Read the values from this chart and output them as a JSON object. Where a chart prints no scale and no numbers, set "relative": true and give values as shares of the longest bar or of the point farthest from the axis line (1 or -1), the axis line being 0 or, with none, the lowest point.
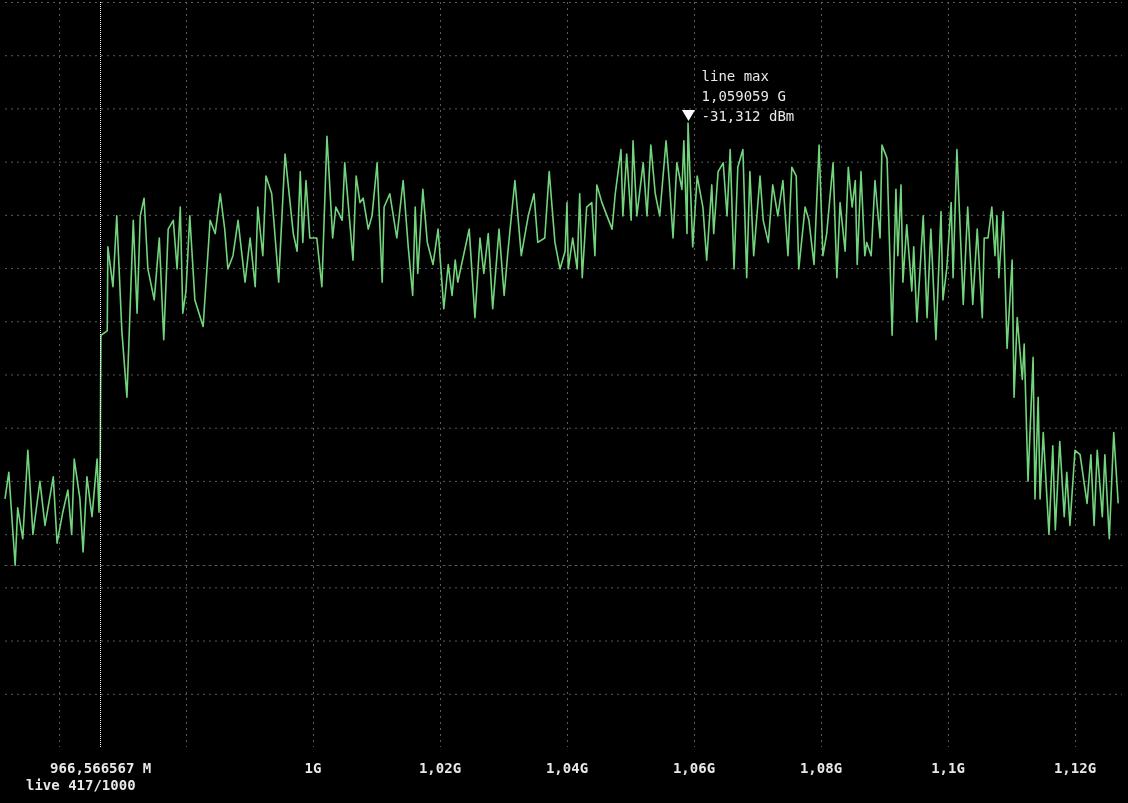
{
  "chart_data": {
    "type": "line",
    "relative": true,
    "grid": true,
    "marker": "none",
    "xlim": [
      0.9515,
      1.1274
    ],
    "xticks": [
      {
        "value": 0.96,
        "label": null
      },
      {
        "value": 0.98,
        "label": null
      },
      {
        "value": 1,
        "label": "1G"
      },
      {
        "value": 1.02,
        "label": "1,02G"
      },
      {
        "value": 1.04,
        "label": "1,04G"
      },
      {
        "value": 1.06,
        "label": "1,06G"
      },
      {
        "value": 1.08,
        "label": "1,08G"
      },
      {
        "value": 1.1,
        "label": "1,1G"
      },
      {
        "value": 1.12,
        "label": "1,12G"
      }
    ],
    "ref_lines": [
      {
        "axis": "x",
        "value": 0.966566567,
        "label": "966,566567 M",
        "color": "#ffffff",
        "line_style": "dotted"
      }
    ],
    "annotations": [
      {
        "text": "line max\n1,059059 G\n-31,312 dBm",
        "x": 1.059059,
        "y": 1
      },
      "live 417/1000"
    ],
    "series": [
      {
        "color": "#72d47c",
        "x": [
          0.9515,
          0.9521,
          0.9531,
          0.9535,
          0.9543,
          0.9551,
          0.9559,
          0.957,
          0.9578,
          0.9591,
          0.9597,
          0.9606,
          0.9614,
          0.962,
          0.9624,
          0.9633,
          0.9638,
          0.9644,
          0.9652,
          0.966,
          0.9663,
          0.9665,
          0.9666,
          0.9676,
          0.9677,
          0.9685,
          0.9691,
          0.9699,
          0.9707,
          0.9717,
          0.9723,
          0.9728,
          0.9734,
          0.974,
          0.975,
          0.9758,
          0.9765,
          0.9772,
          0.978,
          0.9786,
          0.9791,
          0.9795,
          0.98,
          0.9806,
          0.9814,
          0.9827,
          0.9838,
          0.9846,
          0.9854,
          0.9861,
          0.9866,
          0.9874,
          0.9882,
          0.9893,
          0.9901,
          0.9909,
          0.9913,
          0.9921,
          0.9926,
          0.9935,
          0.9946,
          0.9956,
          0.9961,
          0.9969,
          0.9975,
          0.998,
          0.9984,
          0.9989,
          0.9995,
          1.0006,
          1.0014,
          1.0022,
          1.0031,
          1.0036,
          1.0046,
          1.005,
          1.0063,
          1.0068,
          1.0074,
          1.0079,
          1.0087,
          1.0093,
          1.0101,
          1.0109,
          1.0112,
          1.0121,
          1.0132,
          1.0142,
          1.015,
          1.0157,
          1.0161,
          1.0165,
          1.0173,
          1.018,
          1.0189,
          1.0197,
          1.0206,
          1.0213,
          1.0219,
          1.0224,
          1.0228,
          1.0246,
          1.0255,
          1.0263,
          1.0269,
          1.0276,
          1.0283,
          1.0293,
          1.0301,
          1.0307,
          1.0318,
          1.0328,
          1.0339,
          1.0348,
          1.0354,
          1.0365,
          1.0372,
          1.0381,
          1.0389,
          1.0397,
          1.04,
          1.0402,
          1.0409,
          1.0416,
          1.042,
          1.0424,
          1.0431,
          1.0439,
          1.0444,
          1.0447,
          1.0455,
          1.0463,
          1.0471,
          1.0476,
          1.0485,
          1.0488,
          1.0494,
          1.0501,
          1.0504,
          1.051,
          1.052,
          1.0526,
          1.0532,
          1.0539,
          1.0546,
          1.0556,
          1.0561,
          1.0567,
          1.0573,
          1.0581,
          1.0584,
          1.0589,
          1.059059,
          1.0598,
          1.0605,
          1.0614,
          1.062,
          1.0628,
          1.0631,
          1.0638,
          1.0646,
          1.0652,
          1.0657,
          1.0663,
          1.0669,
          1.0677,
          1.0683,
          1.0688,
          1.0694,
          1.0704,
          1.0709,
          1.0717,
          1.0724,
          1.0732,
          1.074,
          1.0748,
          1.0754,
          1.0761,
          1.0765,
          1.0775,
          1.0781,
          1.0789,
          1.0797,
          1.0803,
          1.0809,
          1.0819,
          1.0825,
          1.083,
          1.0838,
          1.0843,
          1.0849,
          1.0854,
          1.0857,
          1.0863,
          1.0869,
          1.0872,
          1.0879,
          1.0885,
          1.0893,
          1.0896,
          1.0904,
          1.0912,
          1.0918,
          1.0921,
          1.0926,
          1.0929,
          1.0935,
          1.0943,
          1.0946,
          1.0951,
          1.0961,
          1.0967,
          1.0973,
          1.0981,
          1.0989,
          1.0992,
          1.0998,
          1.1005,
          1.1008,
          1.1014,
          1.1024,
          1.1031,
          1.1039,
          1.1046,
          1.1054,
          1.1057,
          1.1063,
          1.1069,
          1.1074,
          1.1077,
          1.108,
          1.1087,
          1.1093,
          1.1101,
          1.1104,
          1.1109,
          1.1117,
          1.112,
          1.1126,
          1.1134,
          1.1137,
          1.1142,
          1.1145,
          1.115,
          1.1159,
          1.1165,
          1.1169,
          1.1176,
          1.1183,
          1.1187,
          1.1192,
          1.12,
          1.1208,
          1.1219,
          1.1225,
          1.123,
          1.1235,
          1.1243,
          1.1247,
          1.1254,
          1.1261,
          1.1268
        ],
        "values": [
          0.15,
          0.21,
          0,
          0.13,
          0.06,
          0.26,
          0.07,
          0.19,
          0.09,
          0.2,
          0.05,
          0.12,
          0.17,
          0.07,
          0.24,
          0.15,
          0.03,
          0.2,
          0.11,
          0.24,
          0.12,
          0.25,
          0.52,
          0.53,
          0.72,
          0.63,
          0.79,
          0.53,
          0.38,
          0.78,
          0.57,
          0.79,
          0.83,
          0.67,
          0.6,
          0.74,
          0.51,
          0.76,
          0.78,
          0.67,
          0.81,
          0.57,
          0.62,
          0.79,
          0.6,
          0.54,
          0.78,
          0.75,
          0.84,
          0.76,
          0.67,
          0.7,
          0.78,
          0.64,
          0.74,
          0.63,
          0.81,
          0.7,
          0.88,
          0.84,
          0.64,
          0.93,
          0.86,
          0.75,
          0.71,
          0.89,
          0.73,
          0.87,
          0.74,
          0.74,
          0.63,
          0.97,
          0.74,
          0.81,
          0.78,
          0.91,
          0.69,
          0.88,
          0.82,
          0.83,
          0.76,
          0.79,
          0.91,
          0.64,
          0.81,
          0.84,
          0.74,
          0.87,
          0.72,
          0.61,
          0.81,
          0.66,
          0.85,
          0.73,
          0.68,
          0.76,
          0.58,
          0.68,
          0.61,
          0.69,
          0.64,
          0.76,
          0.56,
          0.74,
          0.66,
          0.75,
          0.58,
          0.76,
          0.61,
          0.71,
          0.87,
          0.7,
          0.79,
          0.84,
          0.73,
          0.74,
          0.89,
          0.73,
          0.67,
          0.71,
          0.82,
          0.67,
          0.74,
          0.67,
          0.84,
          0.65,
          0.81,
          0.82,
          0.7,
          0.86,
          0.82,
          0.79,
          0.76,
          0.84,
          0.94,
          0.79,
          0.93,
          0.78,
          0.96,
          0.79,
          0.91,
          0.79,
          0.95,
          0.84,
          0.79,
          0.96,
          0.87,
          0.74,
          0.91,
          0.85,
          0.96,
          0.75,
          1,
          0.72,
          0.88,
          0.81,
          0.69,
          0.86,
          0.75,
          0.89,
          0.91,
          0.79,
          0.94,
          0.67,
          0.9,
          0.94,
          0.65,
          0.89,
          0.7,
          0.88,
          0.78,
          0.73,
          0.86,
          0.79,
          0.87,
          0.7,
          0.9,
          0.88,
          0.67,
          0.81,
          0.78,
          0.68,
          0.95,
          0.7,
          0.75,
          0.91,
          0.65,
          0.82,
          0.71,
          0.9,
          0.81,
          0.87,
          0.68,
          0.89,
          0.7,
          0.73,
          0.7,
          0.87,
          0.74,
          0.95,
          0.92,
          0.52,
          0.85,
          0.7,
          0.86,
          0.64,
          0.77,
          0.62,
          0.72,
          0.55,
          0.79,
          0.56,
          0.76,
          0.51,
          0.8,
          0.6,
          0.67,
          0.82,
          0.65,
          0.94,
          0.59,
          0.81,
          0.59,
          0.76,
          0.56,
          0.74,
          0.74,
          0.81,
          0.7,
          0.79,
          0.65,
          0.8,
          0.49,
          0.69,
          0.38,
          0.56,
          0.42,
          0.5,
          0.19,
          0.47,
          0.15,
          0.38,
          0.15,
          0.3,
          0.07,
          0.27,
          0.08,
          0.28,
          0.11,
          0.21,
          0.09,
          0.26,
          0.25,
          0.14,
          0.25,
          0.09,
          0.26,
          0.11,
          0.25,
          0.06,
          0.3,
          0.14
        ]
      }
    ]
  }
}
